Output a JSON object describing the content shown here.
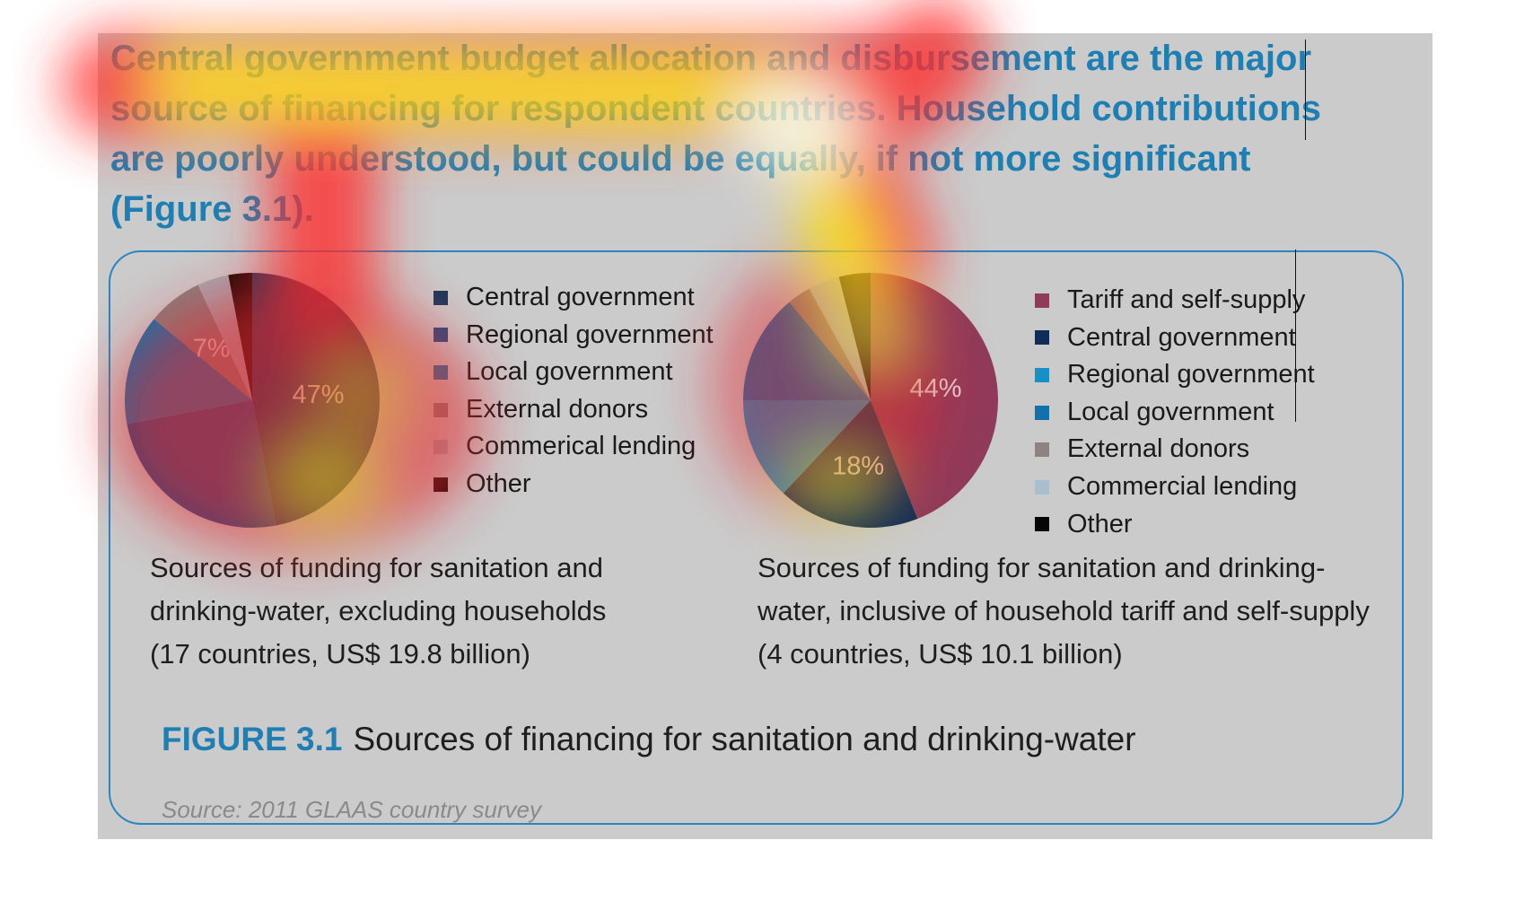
{
  "headline": "Central government budget allocation and disbursement are the major source of financing for respondent countries. Household contributions are poorly understood, but could be equally, if not more significant (Figure 3.1).",
  "figure": {
    "number": "FIGURE 3.1",
    "title": "Sources of financing for sanitation and drinking-water",
    "source": "Source: 2011 GLAAS country survey"
  },
  "chart_data": [
    {
      "type": "pie",
      "caption": "Sources of funding for sanitation and drinking-water, excluding households (17 countries, US$ 19.8 billion)",
      "labels": [
        "Central government",
        "Regional government",
        "Local government",
        "External donors",
        "Commerical lending",
        "Other"
      ],
      "values": [
        47,
        25,
        14,
        7,
        4,
        3
      ],
      "data_labels": [
        "47%",
        "",
        "",
        "7%",
        "",
        ""
      ],
      "colors": [
        "#1b3a5f",
        "#1d4f8a",
        "#1473ad",
        "#8a7f7f",
        "#a6aab3",
        "#160808"
      ],
      "legend_position": "right"
    },
    {
      "type": "pie",
      "caption": "Sources of funding for sanitation and drinking-water, inclusive of household tariff and self-supply (4 countries, US$ 10.1 billion)",
      "labels": [
        "Tariff and self-supply",
        "Central government",
        "Regional government",
        "Local government",
        "External donors",
        "Commercial lending",
        "Other"
      ],
      "values": [
        44,
        18,
        13,
        14,
        3,
        4,
        4
      ],
      "data_labels": [
        "44%",
        "18%",
        "",
        "",
        "",
        "",
        ""
      ],
      "colors": [
        "#8f3b5b",
        "#0f2d57",
        "#1591c7",
        "#1170ad",
        "#8d8380",
        "#a9bfcf",
        "#050505"
      ],
      "legend_position": "right"
    }
  ]
}
